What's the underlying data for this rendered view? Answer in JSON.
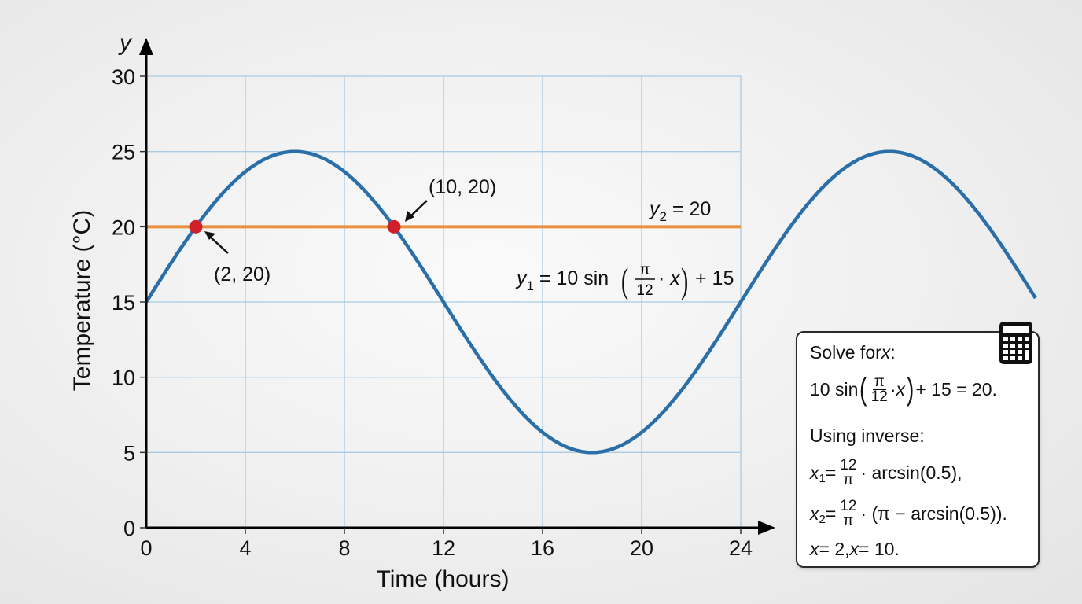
{
  "chart_data": {
    "type": "line",
    "title": "",
    "xlabel": "Time (hours)",
    "ylabel": "Temperature (°C)",
    "y_axis_symbol": "y",
    "xlim": [
      0,
      24
    ],
    "ylim": [
      0,
      30
    ],
    "x_ticks": [
      "0",
      "4",
      "8",
      "12",
      "16",
      "20",
      "24"
    ],
    "y_ticks": [
      "0",
      "5",
      "10",
      "15",
      "20",
      "25",
      "30"
    ],
    "grid": true,
    "series": [
      {
        "name": "y1 = 10 sin(π/12 · x) + 15",
        "color": "#2a6fa8",
        "function": "10*sin(pi/12*x)+15",
        "x": [
          0,
          2,
          4,
          6,
          8,
          10,
          12,
          14,
          16,
          18,
          20,
          22,
          24,
          26,
          28,
          30,
          32,
          34,
          36
        ],
        "values": [
          15,
          20,
          23.66,
          25,
          23.66,
          20,
          15,
          10,
          6.34,
          5,
          6.34,
          10,
          15,
          20,
          23.66,
          25,
          23.66,
          20,
          15
        ]
      },
      {
        "name": "y2 = 20",
        "color": "#e8913f",
        "x": [
          0,
          24
        ],
        "values": [
          20,
          20
        ]
      }
    ],
    "points": [
      {
        "x": 2,
        "y": 20,
        "label": "(2, 20)",
        "color": "#d0202a"
      },
      {
        "x": 10,
        "y": 20,
        "label": "(10, 20)",
        "color": "#d0202a"
      }
    ],
    "annotations": {
      "y2_label": {
        "var": "y",
        "sub": "2",
        "rest": " = 20"
      },
      "y1_label": {
        "var": "y",
        "sub": "1",
        "pre": " = 10 sin",
        "frac_num": "π",
        "frac_den": "12",
        "mid": "· ",
        "x": "x",
        "post": "+ 15"
      }
    }
  },
  "solve_panel": {
    "icon": "calculator-icon",
    "line1_text": "Solve for ",
    "line1_var": "x",
    "line1_end": ":",
    "line2_pre": "10 sin",
    "line2_frac_num": "π",
    "line2_frac_den": "12",
    "line2_mid": "· ",
    "line2_x": "x",
    "line2_post": "+ 15 = 20.",
    "line3": "Using inverse:",
    "line4_var": "x",
    "line4_sub": "1",
    "line4_eq": " =",
    "line4_frac_num": "12",
    "line4_frac_den": "π",
    "line4_post": "· arcsin(0.5),",
    "line5_var": "x",
    "line5_sub": "2",
    "line5_eq": " =",
    "line5_frac_num": "12",
    "line5_frac_den": "π",
    "line5_post": "· (π − arcsin(0.5)).",
    "line6_x1": "x",
    "line6_a": " = 2, ",
    "line6_x2": "x",
    "line6_b": " = 10."
  }
}
